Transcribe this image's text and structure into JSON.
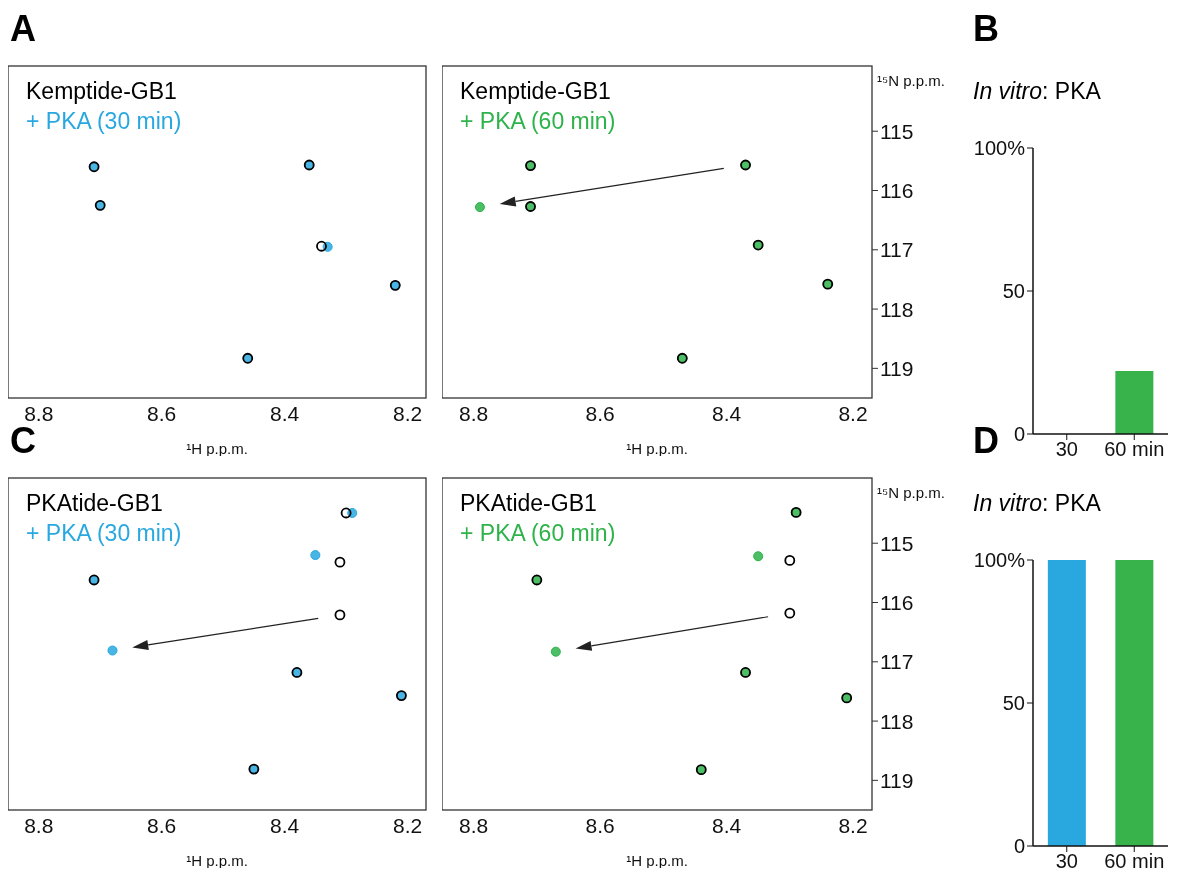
{
  "chart_data": [
    {
      "type": "scatter",
      "annotations": [
        "A"
      ],
      "xlabel": "¹H p.p.m.",
      "xlim": [
        8.85,
        8.17
      ],
      "xticks": [
        8.8,
        8.6,
        8.4,
        8.2
      ],
      "ylim": [
        119.5,
        113.9
      ],
      "tick_labels": "x",
      "marker": "circle",
      "legend": "top left",
      "series": [
        {
          "name": "Kemptide-GB1",
          "color": "#000000",
          "x": [
            8.71,
            8.7,
            8.36,
            8.34,
            8.22,
            8.46
          ],
          "values": [
            115.6,
            116.25,
            115.57,
            116.94,
            117.6,
            118.83
          ]
        },
        {
          "name": "+ PKA (30 min)",
          "color": "#29a8e0",
          "x": [
            8.71,
            8.7,
            8.36,
            8.33,
            8.22,
            8.46
          ],
          "values": [
            115.6,
            116.25,
            115.57,
            116.95,
            117.6,
            118.83
          ]
        }
      ]
    },
    {
      "type": "scatter",
      "xlabel": "¹H p.p.m.",
      "ylabel": "¹⁵N p.p.m.",
      "xlim": [
        8.85,
        8.17
      ],
      "xticks": [
        8.8,
        8.6,
        8.4,
        8.2
      ],
      "ylim": [
        119.5,
        113.9
      ],
      "yticks": [
        115,
        116,
        117,
        118,
        119
      ],
      "marker": "circle",
      "legend": "top left",
      "series": [
        {
          "name": "Kemptide-GB1",
          "color": "#000000",
          "x": [
            8.71,
            8.71,
            8.35,
            8.24,
            8.47,
            8.37
          ],
          "values": [
            115.58,
            116.27,
            116.92,
            117.58,
            118.83,
            115.57
          ]
        },
        {
          "name": "+ PKA (60 min)",
          "color": "#2db34a",
          "x": [
            8.71,
            8.71,
            8.35,
            8.24,
            8.47,
            8.37,
            8.79
          ],
          "values": [
            115.58,
            116.27,
            116.92,
            117.58,
            118.83,
            115.57,
            116.28
          ]
        }
      ]
    },
    {
      "type": "bar",
      "annotations": [
        "B"
      ],
      "title": "In vitro: PKA",
      "categories": [
        "30",
        "60 min"
      ],
      "values": [
        0,
        22
      ],
      "colors": [
        "#29a8e0",
        "#38b24a"
      ],
      "ylim": [
        0,
        100
      ],
      "yticks": [
        0,
        50,
        {
          "value": 100,
          "label": "100%"
        }
      ]
    },
    {
      "type": "scatter",
      "annotations": [
        "C"
      ],
      "xlabel": "¹H p.p.m.",
      "xlim": [
        8.85,
        8.17
      ],
      "xticks": [
        8.8,
        8.6,
        8.4,
        8.2
      ],
      "ylim": [
        119.5,
        113.9
      ],
      "tick_labels": "x",
      "marker": "circle",
      "legend": "top left",
      "series": [
        {
          "name": "PKAtide-GB1",
          "color": "#000000",
          "x": [
            8.71,
            8.3,
            8.31,
            8.38,
            8.21,
            8.45,
            8.31
          ],
          "values": [
            115.62,
            114.49,
            115.32,
            117.18,
            117.57,
            118.81,
            116.21
          ]
        },
        {
          "name": "+ PKA (30 min)",
          "color": "#29a8e0",
          "x": [
            8.71,
            8.29,
            8.35,
            8.38,
            8.21,
            8.45,
            8.68
          ],
          "values": [
            115.62,
            114.49,
            115.2,
            117.18,
            117.57,
            118.81,
            116.81
          ]
        }
      ]
    },
    {
      "type": "scatter",
      "xlabel": "¹H p.p.m.",
      "ylabel": "¹⁵N p.p.m.",
      "xlim": [
        8.85,
        8.17
      ],
      "xticks": [
        8.8,
        8.6,
        8.4,
        8.2
      ],
      "ylim": [
        119.5,
        113.9
      ],
      "yticks": [
        115,
        116,
        117,
        118,
        119
      ],
      "marker": "circle",
      "legend": "top left",
      "series": [
        {
          "name": "PKAtide-GB1",
          "color": "#000000",
          "x": [
            8.7,
            8.29,
            8.3,
            8.37,
            8.21,
            8.44,
            8.3
          ],
          "values": [
            115.62,
            114.48,
            115.29,
            117.18,
            117.61,
            118.82,
            116.18
          ]
        },
        {
          "name": "+ PKA (60 min)",
          "color": "#2db34a",
          "x": [
            8.7,
            8.29,
            8.35,
            8.37,
            8.21,
            8.44,
            8.67
          ],
          "values": [
            115.62,
            114.48,
            115.22,
            117.18,
            117.61,
            118.82,
            116.83
          ]
        }
      ]
    },
    {
      "type": "bar",
      "annotations": [
        "D"
      ],
      "title": "In vitro: PKA",
      "categories": [
        "30",
        "60 min"
      ],
      "values": [
        100,
        100
      ],
      "colors": [
        "#29a8e0",
        "#38b24a"
      ],
      "ylim": [
        0,
        100
      ],
      "yticks": [
        0,
        50,
        {
          "value": 100,
          "label": "100%"
        }
      ]
    }
  ]
}
